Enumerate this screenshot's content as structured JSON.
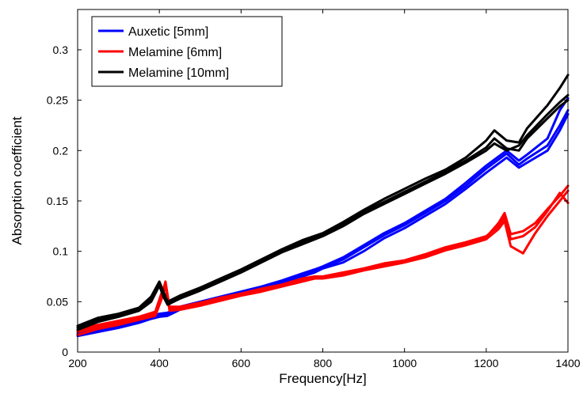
{
  "chart_data": {
    "type": "line",
    "title": "",
    "xlabel": "Frequency[Hz]",
    "ylabel": "Absorption coefficient",
    "xlim": [
      200,
      1400
    ],
    "ylim": [
      0,
      0.34
    ],
    "xticks": [
      200,
      400,
      600,
      800,
      1000,
      1200,
      1400
    ],
    "xtick_labels": [
      "200",
      "400",
      "600",
      "800",
      "1000",
      "1200",
      "1400"
    ],
    "yticks": [
      0,
      0.05,
      0.1,
      0.15,
      0.2,
      0.25,
      0.3
    ],
    "ytick_labels": [
      "0",
      "0.05",
      "0.1",
      "0.15",
      "0.2",
      "0.25",
      "0.3"
    ],
    "grid": false,
    "legend_position": "top-left",
    "series": [
      {
        "name": "Auxetic [5mm]",
        "color": "#0000ff",
        "curves": [
          {
            "x": [
              200,
              250,
              300,
              350,
              380,
              400,
              420,
              450,
              500,
              550,
              600,
              650,
              700,
              750,
              780,
              800,
              850,
              900,
              950,
              1000,
              1050,
              1100,
              1150,
              1200,
              1250,
              1280,
              1300,
              1350,
              1380,
              1400
            ],
            "y": [
              0.018,
              0.021,
              0.025,
              0.03,
              0.034,
              0.036,
              0.037,
              0.043,
              0.048,
              0.054,
              0.059,
              0.064,
              0.069,
              0.076,
              0.081,
              0.084,
              0.092,
              0.104,
              0.116,
              0.126,
              0.138,
              0.15,
              0.165,
              0.182,
              0.197,
              0.186,
              0.192,
              0.205,
              0.225,
              0.24
            ]
          },
          {
            "x": [
              200,
              250,
              300,
              350,
              380,
              400,
              420,
              450,
              500,
              550,
              600,
              650,
              700,
              750,
              780,
              800,
              850,
              900,
              950,
              1000,
              1050,
              1100,
              1150,
              1200,
              1250,
              1280,
              1300,
              1350,
              1380,
              1400
            ],
            "y": [
              0.02,
              0.023,
              0.027,
              0.032,
              0.036,
              0.038,
              0.039,
              0.045,
              0.05,
              0.055,
              0.06,
              0.065,
              0.071,
              0.078,
              0.082,
              0.085,
              0.094,
              0.106,
              0.118,
              0.128,
              0.14,
              0.152,
              0.168,
              0.185,
              0.2,
              0.19,
              0.196,
              0.212,
              0.24,
              0.252
            ]
          },
          {
            "x": [
              200,
              250,
              300,
              350,
              380,
              400,
              420,
              450,
              500,
              550,
              600,
              650,
              700,
              750,
              780,
              800,
              850,
              900,
              950,
              1000,
              1050,
              1100,
              1150,
              1200,
              1250,
              1280,
              1300,
              1350,
              1380,
              1400
            ],
            "y": [
              0.016,
              0.02,
              0.024,
              0.029,
              0.033,
              0.035,
              0.036,
              0.042,
              0.047,
              0.053,
              0.058,
              0.063,
              0.068,
              0.075,
              0.079,
              0.083,
              0.089,
              0.1,
              0.113,
              0.123,
              0.135,
              0.147,
              0.162,
              0.178,
              0.193,
              0.183,
              0.188,
              0.2,
              0.22,
              0.236
            ]
          }
        ]
      },
      {
        "name": "Melamine [6mm]",
        "color": "#ff0000",
        "curves": [
          {
            "x": [
              200,
              250,
              300,
              350,
              390,
              405,
              415,
              425,
              450,
              500,
              550,
              600,
              650,
              700,
              750,
              780,
              800,
              850,
              900,
              950,
              1000,
              1050,
              1100,
              1150,
              1200,
              1230,
              1245,
              1260,
              1290,
              1320,
              1350,
              1380,
              1400
            ],
            "y": [
              0.02,
              0.025,
              0.029,
              0.034,
              0.038,
              0.055,
              0.07,
              0.043,
              0.044,
              0.048,
              0.053,
              0.057,
              0.062,
              0.066,
              0.072,
              0.074,
              0.074,
              0.078,
              0.082,
              0.087,
              0.09,
              0.096,
              0.103,
              0.108,
              0.114,
              0.128,
              0.138,
              0.117,
              0.12,
              0.128,
              0.142,
              0.155,
              0.165
            ]
          },
          {
            "x": [
              200,
              250,
              300,
              350,
              390,
              405,
              415,
              425,
              450,
              500,
              550,
              600,
              650,
              700,
              750,
              780,
              800,
              850,
              900,
              950,
              1000,
              1050,
              1100,
              1150,
              1200,
              1230,
              1245,
              1260,
              1290,
              1320,
              1350,
              1380,
              1400
            ],
            "y": [
              0.017,
              0.023,
              0.027,
              0.032,
              0.036,
              0.052,
              0.066,
              0.041,
              0.042,
              0.046,
              0.051,
              0.056,
              0.06,
              0.065,
              0.07,
              0.073,
              0.073,
              0.076,
              0.081,
              0.085,
              0.089,
              0.094,
              0.101,
              0.106,
              0.112,
              0.122,
              0.13,
              0.105,
              0.098,
              0.118,
              0.135,
              0.15,
              0.16
            ]
          },
          {
            "x": [
              200,
              250,
              300,
              350,
              390,
              405,
              415,
              425,
              450,
              500,
              550,
              600,
              650,
              700,
              750,
              780,
              800,
              850,
              900,
              950,
              1000,
              1050,
              1100,
              1150,
              1200,
              1230,
              1245,
              1260,
              1290,
              1320,
              1350,
              1380,
              1400
            ],
            "y": [
              0.022,
              0.027,
              0.031,
              0.035,
              0.04,
              0.058,
              0.068,
              0.045,
              0.045,
              0.049,
              0.054,
              0.058,
              0.063,
              0.067,
              0.073,
              0.075,
              0.075,
              0.079,
              0.083,
              0.088,
              0.091,
              0.097,
              0.104,
              0.109,
              0.115,
              0.125,
              0.134,
              0.112,
              0.115,
              0.124,
              0.14,
              0.158,
              0.148
            ]
          }
        ]
      },
      {
        "name": "Melamine [10mm]",
        "color": "#000000",
        "curves": [
          {
            "x": [
              200,
              250,
              300,
              350,
              380,
              400,
              410,
              420,
              450,
              500,
              550,
              600,
              650,
              700,
              750,
              800,
              850,
              900,
              950,
              1000,
              1050,
              1100,
              1150,
              1200,
              1220,
              1250,
              1280,
              1300,
              1350,
              1380,
              1400
            ],
            "y": [
              0.026,
              0.034,
              0.038,
              0.044,
              0.055,
              0.07,
              0.06,
              0.05,
              0.056,
              0.064,
              0.073,
              0.082,
              0.092,
              0.102,
              0.111,
              0.118,
              0.129,
              0.141,
              0.152,
              0.162,
              0.172,
              0.181,
              0.193,
              0.21,
              0.22,
              0.21,
              0.208,
              0.222,
              0.245,
              0.262,
              0.275
            ]
          },
          {
            "x": [
              200,
              250,
              300,
              350,
              380,
              400,
              410,
              420,
              450,
              500,
              550,
              600,
              650,
              700,
              750,
              800,
              850,
              900,
              950,
              1000,
              1050,
              1100,
              1150,
              1200,
              1220,
              1250,
              1280,
              1300,
              1350,
              1380,
              1400
            ],
            "y": [
              0.022,
              0.03,
              0.035,
              0.041,
              0.05,
              0.066,
              0.055,
              0.047,
              0.053,
              0.061,
              0.07,
              0.079,
              0.089,
              0.099,
              0.107,
              0.115,
              0.125,
              0.137,
              0.147,
              0.157,
              0.167,
              0.177,
              0.188,
              0.2,
              0.207,
              0.2,
              0.205,
              0.215,
              0.236,
              0.248,
              0.255
            ]
          },
          {
            "x": [
              200,
              250,
              300,
              350,
              380,
              400,
              410,
              420,
              450,
              500,
              550,
              600,
              650,
              700,
              750,
              800,
              850,
              900,
              950,
              1000,
              1050,
              1100,
              1150,
              1200,
              1220,
              1250,
              1280,
              1300,
              1350,
              1380,
              1400
            ],
            "y": [
              0.024,
              0.032,
              0.036,
              0.042,
              0.052,
              0.068,
              0.058,
              0.048,
              0.054,
              0.062,
              0.071,
              0.08,
              0.09,
              0.1,
              0.109,
              0.116,
              0.127,
              0.139,
              0.149,
              0.159,
              0.169,
              0.179,
              0.19,
              0.203,
              0.212,
              0.202,
              0.2,
              0.212,
              0.232,
              0.244,
              0.25
            ]
          }
        ]
      }
    ]
  }
}
